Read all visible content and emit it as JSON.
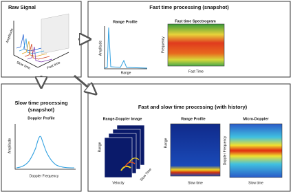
{
  "raw": {
    "title": "Raw Signal",
    "y_label": "Amplitude",
    "x_label": "Slow time",
    "z_label": "Fast time"
  },
  "fast": {
    "title": "Fast time processing (snapshot)",
    "range_profile": {
      "title": "Range Profile",
      "y_label": "Amplitude",
      "x_label": "Range"
    },
    "spectrogram": {
      "title": "Fast time Spectrogram",
      "y_label": "Frequency",
      "x_label": "Fast Time"
    }
  },
  "slow": {
    "title_lines": [
      "Slow time processing",
      "(snapshot)"
    ],
    "doppler_profile": {
      "title": "Doppler Profile",
      "y_label": "Amplitude",
      "x_label": "Doppler Frequency"
    }
  },
  "both": {
    "title": "Fast and slow time processing (with history)",
    "range_doppler": {
      "title": "Range-Doppler Image",
      "y_label": "Range",
      "x_label": "Velocity",
      "z_label": "Slow Time"
    },
    "range_profile": {
      "title": "Range Profile",
      "y_label": "Range",
      "x_label": "Slow time"
    },
    "micro_doppler": {
      "title": "Micro-Doppler",
      "y_label": "Doppler Frequency",
      "x_label": "Slow time"
    }
  }
}
